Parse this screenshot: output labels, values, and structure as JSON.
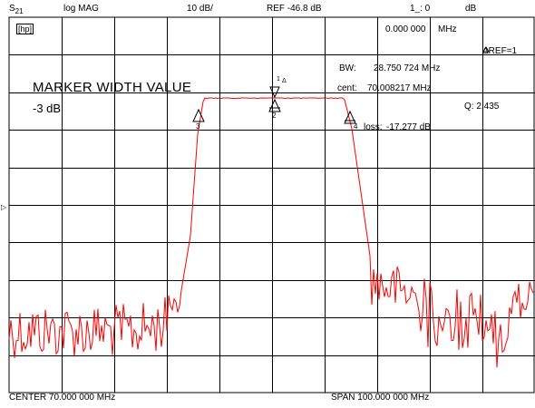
{
  "header": {
    "param_main": "S",
    "param_sub": "21",
    "format": "log MAG",
    "scale": "10 dB/",
    "ref": "REF -46.8 dB",
    "marker_id": "1_:  0",
    "marker_unit": "dB"
  },
  "left_badge": "[hp]",
  "marker": {
    "freq": "0.000 000",
    "freq_unit": "MHz",
    "ref_label": "ΔREF=1"
  },
  "stats": {
    "bw_label": "BW:",
    "bw_value": "28.750 724 MHz",
    "cent_label": "cent:",
    "cent_value": "70.008217 MHz",
    "q_label": "Q: 2.435",
    "loss_label": "loss:",
    "loss_value": "-17.277 dB"
  },
  "overlay": {
    "title": "MARKER WIDTH VALUE",
    "value": "-3 dB"
  },
  "markers": {
    "m1": "1",
    "m2": "2",
    "m3": "3",
    "m4": "4",
    "delta": "Δ"
  },
  "ref_arrow": "▷",
  "footer": {
    "center": "CENTER   70.000 000 MHz",
    "span": "SPAN  100.000 000 MHz"
  },
  "colors": {
    "trace": "#ff0000",
    "grid": "#000000",
    "background": "#ffffff"
  }
}
